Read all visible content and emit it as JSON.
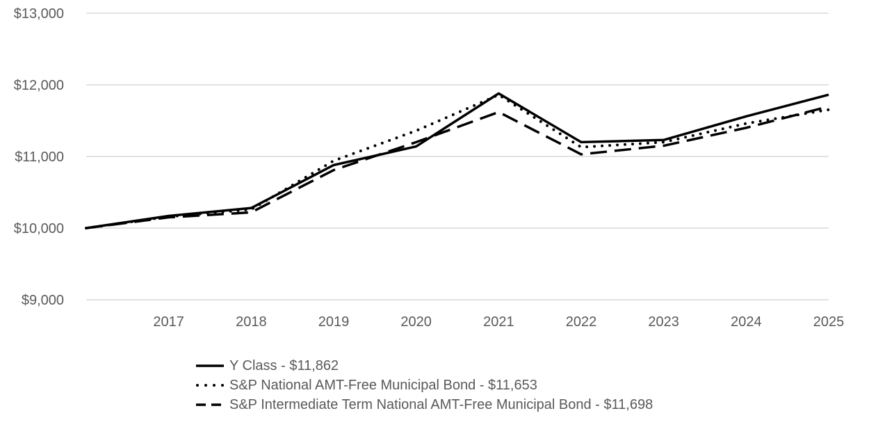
{
  "chart_data": {
    "type": "line",
    "title": "",
    "xlabel": "",
    "ylabel": "",
    "x": [
      2016,
      2017,
      2018,
      2019,
      2020,
      2021,
      2022,
      2023,
      2024,
      2025
    ],
    "x_tick_labels": [
      "2017",
      "2018",
      "2019",
      "2020",
      "2021",
      "2022",
      "2023",
      "2024",
      "2025"
    ],
    "y_tick_labels": [
      "$13,000",
      "$12,000",
      "$11,000",
      "$10,000",
      "$9,000"
    ],
    "ylim": [
      9000,
      13000
    ],
    "grid": true,
    "legend_position": "bottom",
    "series": [
      {
        "name": "Y Class",
        "legend_label": "Y Class - $11,862",
        "style": "solid",
        "color": "#000000",
        "values": [
          10000,
          10170,
          10280,
          10880,
          11140,
          11880,
          11200,
          11230,
          11560,
          11862
        ]
      },
      {
        "name": "S&P National AMT-Free Municipal Bond",
        "legend_label": "S&P National AMT-Free Municipal Bond - $11,653",
        "style": "dotted",
        "color": "#000000",
        "values": [
          10000,
          10160,
          10260,
          10940,
          11360,
          11860,
          11130,
          11200,
          11460,
          11653
        ]
      },
      {
        "name": "S&P Intermediate Term National AMT-Free Municipal Bond",
        "legend_label": "S&P Intermediate Term National AMT-Free Municipal Bond - $11,698",
        "style": "dashed",
        "color": "#000000",
        "values": [
          10000,
          10150,
          10220,
          10810,
          11200,
          11620,
          11030,
          11150,
          11400,
          11698
        ]
      }
    ]
  }
}
